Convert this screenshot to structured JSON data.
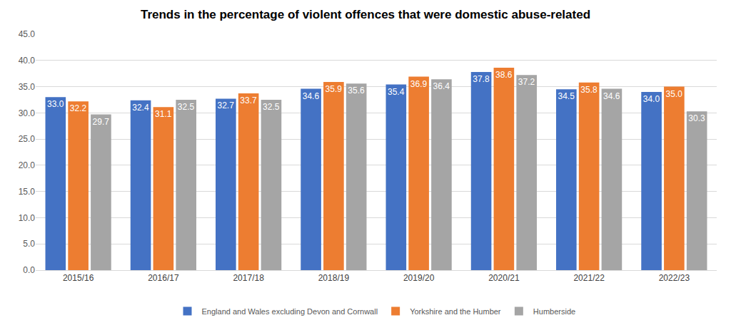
{
  "chart_data": {
    "type": "bar",
    "title": "Trends in the percentage of violent offences that were domestic abuse-related",
    "categories": [
      "2015/16",
      "2016/17",
      "2017/18",
      "2018/19",
      "2019/20",
      "2020/21",
      "2021/22",
      "2022/23"
    ],
    "series": [
      {
        "name": "England and Wales excluding Devon and Cornwall",
        "color": "#4472c4",
        "values": [
          33.0,
          32.4,
          32.7,
          34.6,
          35.4,
          37.8,
          34.5,
          34.0
        ],
        "value_labels": [
          "33.0",
          "32.4",
          "32.7",
          "34.6",
          "35.4",
          "37.8",
          "34.5",
          "34.0"
        ]
      },
      {
        "name": "Yorkshire and the Humber",
        "color": "#ed7d31",
        "values": [
          32.2,
          31.1,
          33.7,
          35.9,
          36.9,
          38.6,
          35.8,
          35.0
        ],
        "value_labels": [
          "32.2",
          "31.1",
          "33.7",
          "35.9",
          "36.9",
          "38.6",
          "35.8",
          "35.0"
        ]
      },
      {
        "name": "Humberside",
        "color": "#a5a5a5",
        "values": [
          29.7,
          32.5,
          32.5,
          35.6,
          36.4,
          37.2,
          34.6,
          30.3
        ],
        "value_labels": [
          "29.7",
          "32.5",
          "32.5",
          "35.6",
          "36.4",
          "37.2",
          "34.6",
          "30.3"
        ]
      }
    ],
    "ylim": [
      0,
      45
    ],
    "yticks": [
      {
        "value": 0,
        "label": "0.0"
      },
      {
        "value": 5,
        "label": "5.0"
      },
      {
        "value": 10,
        "label": "10.0"
      },
      {
        "value": 15,
        "label": "15.0"
      },
      {
        "value": 20,
        "label": "20.0"
      },
      {
        "value": 25,
        "label": "25.0"
      },
      {
        "value": 30,
        "label": "30.0"
      },
      {
        "value": 35,
        "label": "35.0"
      },
      {
        "value": 40,
        "label": "40.0"
      },
      {
        "value": 45,
        "label": "45.0"
      }
    ],
    "grid": true,
    "legend": "bottom",
    "data_labels": true
  }
}
